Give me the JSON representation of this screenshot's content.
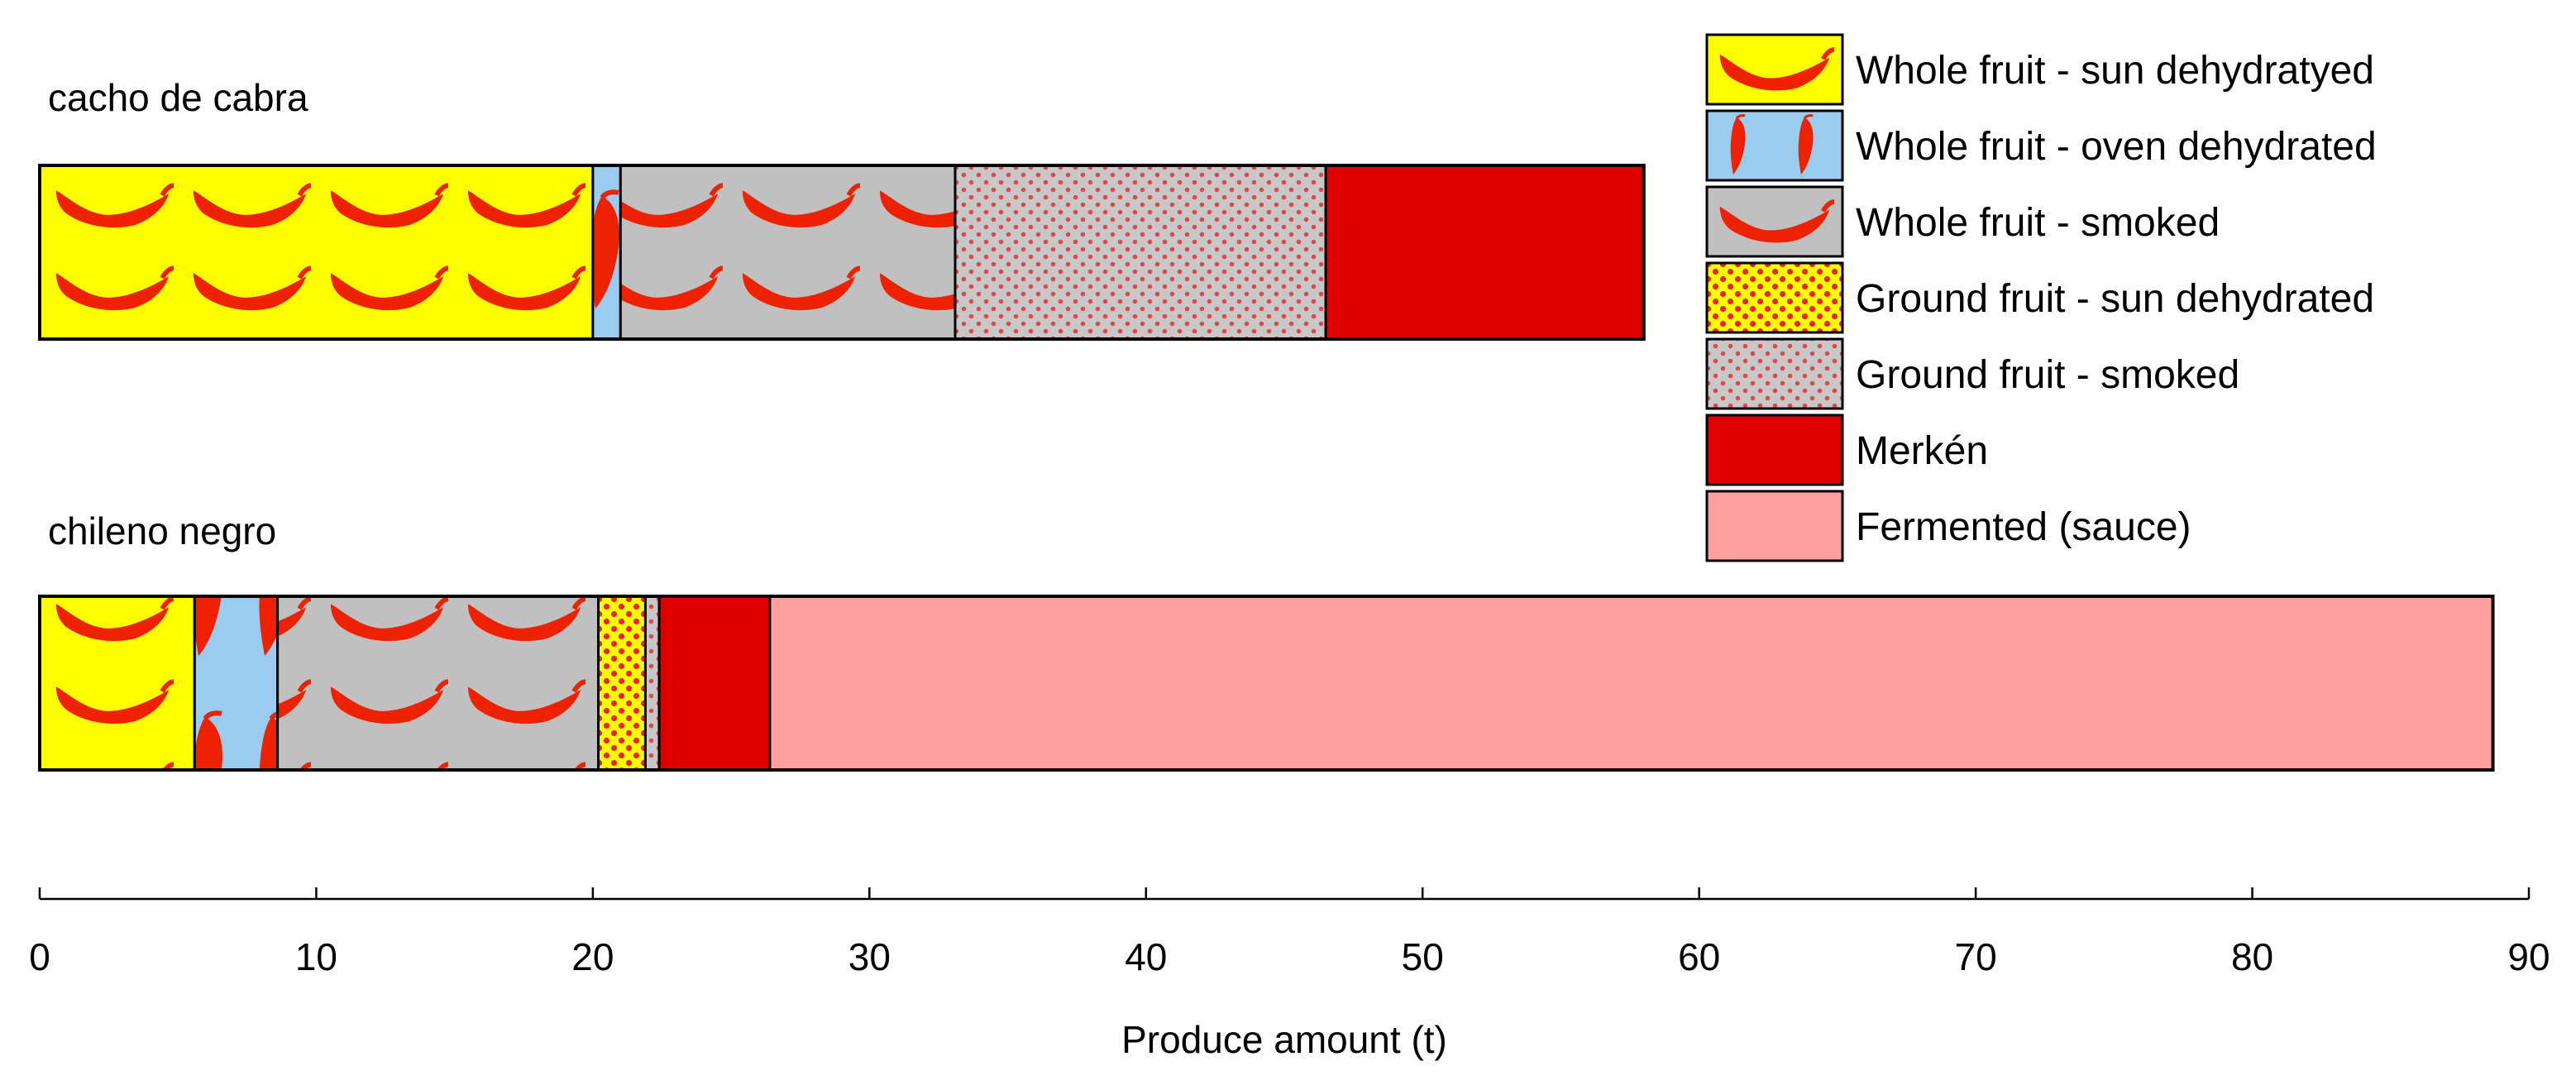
{
  "chart_data": {
    "type": "bar",
    "orientation": "horizontal",
    "stacked": true,
    "categories": [
      "cacho de cabra",
      "chileno negro"
    ],
    "series": [
      {
        "name": "Whole fruit - sun dehydratyed",
        "values": [
          20.0,
          5.6
        ],
        "color": "#ffff00",
        "pattern": "whole-sun"
      },
      {
        "name": "Whole fruit - oven dehydrated",
        "values": [
          1.0,
          3.0
        ],
        "color": "#99ccee",
        "pattern": "whole-oven"
      },
      {
        "name": "Whole fruit - smoked",
        "values": [
          12.1,
          11.6
        ],
        "color": "#c0c0c0",
        "pattern": "whole-smoked"
      },
      {
        "name": "Ground fruit - sun dehydrated",
        "values": [
          0,
          1.7
        ],
        "color": "#ffff00",
        "pattern": "ground-sun"
      },
      {
        "name": "Ground fruit - smoked",
        "values": [
          13.4,
          0.5
        ],
        "color": "#d4a8a8",
        "pattern": "ground-smoked"
      },
      {
        "name": "Merkén",
        "values": [
          11.5,
          4.0
        ],
        "color": "#e00000",
        "pattern": "solid"
      },
      {
        "name": "Fermented (sauce)",
        "values": [
          0,
          62.3
        ],
        "color": "#ffa0a0",
        "pattern": "solid"
      }
    ],
    "xlabel": "Produce amount (t)",
    "ylabel": "",
    "xlim": [
      0,
      90
    ],
    "xticks": [
      0,
      10,
      20,
      30,
      40,
      50,
      60,
      70,
      80,
      90
    ],
    "grid": false,
    "legend": "top-right",
    "title": ""
  },
  "colors": {
    "pepper": "#ee2200",
    "dot_red": "#ee2222",
    "ground_smoked_dot": "#e04848",
    "outline": "#000000"
  }
}
